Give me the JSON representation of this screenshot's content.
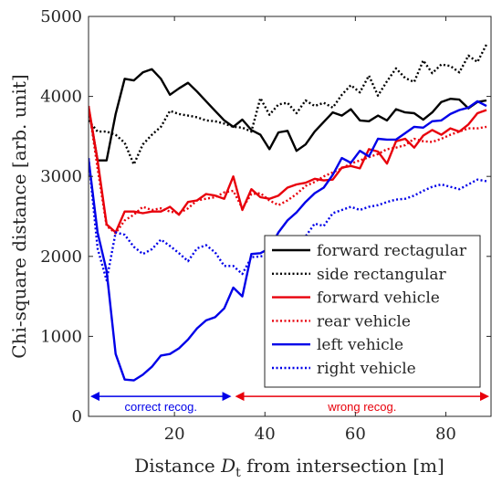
{
  "chart_data": {
    "type": "line",
    "xlabel": "Distance D_t from intersection [m]",
    "xlabel_parts": {
      "pre": "Distance ",
      "var": "D",
      "sub": "t",
      "post": " from intersection [m]"
    },
    "ylabel": "Chi-square distance [arb. unit]",
    "xlim": [
      1,
      90
    ],
    "ylim": [
      0,
      5000
    ],
    "xticks": [
      20,
      40,
      60,
      80
    ],
    "yticks": [
      0,
      1000,
      2000,
      3000,
      4000,
      5000
    ],
    "grid": false,
    "legend_position": "right-middle",
    "x": [
      1,
      3,
      5,
      7,
      9,
      11,
      13,
      15,
      17,
      19,
      21,
      23,
      25,
      27,
      29,
      31,
      33,
      35,
      37,
      39,
      41,
      43,
      45,
      47,
      49,
      51,
      53,
      55,
      57,
      59,
      61,
      63,
      65,
      67,
      69,
      71,
      73,
      75,
      77,
      79,
      81,
      83,
      85,
      87,
      89
    ],
    "series": [
      {
        "name": "forward rectagular",
        "color": "#000000",
        "dash": "solid",
        "values": [
          3860,
          3200,
          3200,
          3780,
          4220,
          4200,
          4300,
          4340,
          4220,
          4020,
          4100,
          4170,
          4060,
          3940,
          3820,
          3700,
          3620,
          3710,
          3580,
          3520,
          3340,
          3550,
          3570,
          3320,
          3400,
          3560,
          3680,
          3800,
          3760,
          3840,
          3700,
          3690,
          3760,
          3700,
          3840,
          3800,
          3790,
          3710,
          3800,
          3930,
          3970,
          3960,
          3850,
          3930,
          3950
        ]
      },
      {
        "name": "side rectangular",
        "color": "#000000",
        "dash": "dot",
        "values": [
          3700,
          3560,
          3560,
          3520,
          3420,
          3150,
          3400,
          3520,
          3620,
          3820,
          3780,
          3760,
          3740,
          3700,
          3690,
          3660,
          3620,
          3610,
          3560,
          3980,
          3770,
          3900,
          3920,
          3790,
          3950,
          3880,
          3920,
          3860,
          4020,
          4140,
          4050,
          4260,
          4010,
          4190,
          4350,
          4230,
          4180,
          4450,
          4290,
          4400,
          4380,
          4300,
          4510,
          4430,
          4650
        ]
      },
      {
        "name": "forward vehicle",
        "color": "#e8000b",
        "dash": "solid",
        "values": [
          3880,
          3200,
          2400,
          2300,
          2560,
          2560,
          2540,
          2560,
          2560,
          2620,
          2520,
          2680,
          2700,
          2780,
          2760,
          2720,
          3000,
          2580,
          2840,
          2740,
          2720,
          2760,
          2860,
          2900,
          2920,
          2970,
          2950,
          2960,
          3110,
          3130,
          3100,
          3340,
          3310,
          3160,
          3440,
          3470,
          3360,
          3510,
          3580,
          3520,
          3600,
          3560,
          3650,
          3790,
          3830
        ]
      },
      {
        "name": "rear vehicle",
        "color": "#e8000b",
        "dash": "dot",
        "values": [
          3880,
          3100,
          2380,
          2290,
          2450,
          2520,
          2620,
          2580,
          2600,
          2560,
          2540,
          2600,
          2700,
          2720,
          2740,
          2800,
          2820,
          2600,
          2780,
          2790,
          2700,
          2640,
          2700,
          2780,
          2880,
          2930,
          3000,
          3050,
          3100,
          3160,
          3200,
          3240,
          3280,
          3340,
          3360,
          3390,
          3470,
          3440,
          3430,
          3470,
          3520,
          3560,
          3600,
          3600,
          3620
        ]
      },
      {
        "name": "left vehicle",
        "color": "#0000e8",
        "dash": "solid",
        "values": [
          3220,
          2300,
          1820,
          780,
          460,
          450,
          520,
          620,
          760,
          780,
          850,
          960,
          1100,
          1200,
          1240,
          1350,
          1610,
          1500,
          2030,
          2040,
          2100,
          2300,
          2450,
          2550,
          2680,
          2790,
          2860,
          3020,
          3230,
          3170,
          3320,
          3250,
          3470,
          3460,
          3460,
          3540,
          3620,
          3610,
          3690,
          3700,
          3780,
          3830,
          3860,
          3940,
          3880
        ]
      },
      {
        "name": "right vehicle",
        "color": "#0000e8",
        "dash": "dot",
        "values": [
          3230,
          2100,
          1700,
          2300,
          2270,
          2120,
          2030,
          2090,
          2210,
          2130,
          2040,
          1940,
          2100,
          2140,
          2050,
          1880,
          1880,
          1780,
          1990,
          2000,
          2020,
          1940,
          2060,
          2150,
          2250,
          2410,
          2380,
          2540,
          2580,
          2620,
          2580,
          2620,
          2640,
          2680,
          2710,
          2720,
          2760,
          2820,
          2870,
          2900,
          2870,
          2840,
          2900,
          2960,
          2940
        ]
      }
    ],
    "annotations": [
      {
        "text": "correct recog.",
        "color": "#0000e8",
        "x_from": 1,
        "x_to": 33,
        "y": 250
      },
      {
        "text": "wrong recog.",
        "color": "#e8000b",
        "x_from": 33,
        "x_to": 90,
        "y": 250
      }
    ]
  }
}
